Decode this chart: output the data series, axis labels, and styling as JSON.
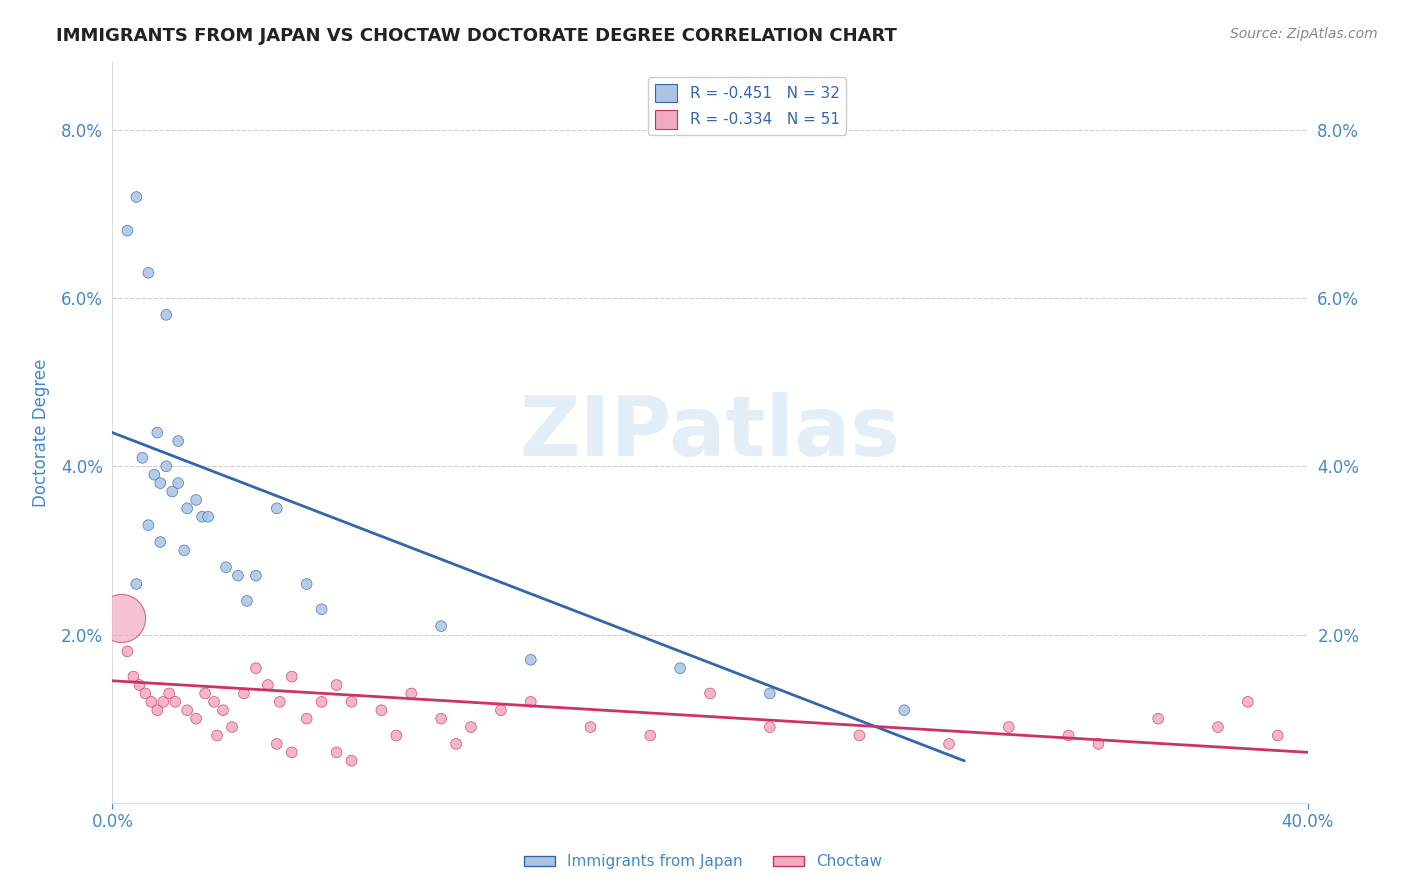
{
  "title": "IMMIGRANTS FROM JAPAN VS CHOCTAW DOCTORATE DEGREE CORRELATION CHART",
  "source_text": "Source: ZipAtlas.com",
  "ylabel": "Doctorate Degree",
  "xlim": [
    0.0,
    0.4
  ],
  "ylim": [
    0.0,
    0.088
  ],
  "xtick_positions": [
    0.0,
    0.4
  ],
  "xtick_labels": [
    "0.0%",
    "40.0%"
  ],
  "ytick_positions": [
    0.0,
    0.02,
    0.04,
    0.06,
    0.08
  ],
  "ytick_labels_left": [
    "",
    "2.0%",
    "4.0%",
    "6.0%",
    "8.0%"
  ],
  "ytick_labels_right": [
    "",
    "2.0%",
    "4.0%",
    "6.0%",
    "8.0%"
  ],
  "blue_R": -0.451,
  "blue_N": 32,
  "pink_R": -0.334,
  "pink_N": 51,
  "blue_color": "#aac4e2",
  "pink_color": "#f2aabe",
  "blue_line_color": "#3366aa",
  "pink_line_color": "#cc3366",
  "legend_label_blue": "Immigrants from Japan",
  "legend_label_pink": "Choctaw",
  "watermark": "ZIPatlas",
  "background_color": "#ffffff",
  "grid_color": "#cccccc",
  "title_color": "#222222",
  "axis_label_color": "#4488cc",
  "blue_scatter_x": [
    0.005,
    0.012,
    0.018,
    0.008,
    0.015,
    0.022,
    0.01,
    0.014,
    0.016,
    0.02,
    0.025,
    0.03,
    0.018,
    0.022,
    0.028,
    0.032,
    0.012,
    0.016,
    0.024,
    0.038,
    0.042,
    0.048,
    0.055,
    0.008,
    0.045,
    0.065,
    0.07,
    0.11,
    0.14,
    0.19,
    0.22,
    0.265
  ],
  "blue_scatter_y": [
    0.068,
    0.063,
    0.058,
    0.072,
    0.044,
    0.043,
    0.041,
    0.039,
    0.038,
    0.037,
    0.035,
    0.034,
    0.04,
    0.038,
    0.036,
    0.034,
    0.033,
    0.031,
    0.03,
    0.028,
    0.027,
    0.027,
    0.035,
    0.026,
    0.024,
    0.026,
    0.023,
    0.021,
    0.017,
    0.016,
    0.013,
    0.011
  ],
  "blue_scatter_sizes": [
    60,
    60,
    60,
    60,
    60,
    60,
    60,
    60,
    60,
    60,
    60,
    60,
    60,
    60,
    60,
    60,
    60,
    60,
    60,
    60,
    60,
    60,
    60,
    60,
    60,
    60,
    60,
    60,
    60,
    60,
    60,
    60
  ],
  "pink_large_x": [
    0.003
  ],
  "pink_large_y": [
    0.022
  ],
  "pink_large_size": [
    1200
  ],
  "pink_scatter_x": [
    0.005,
    0.007,
    0.009,
    0.011,
    0.013,
    0.015,
    0.017,
    0.019,
    0.021,
    0.025,
    0.028,
    0.031,
    0.034,
    0.037,
    0.04,
    0.044,
    0.048,
    0.052,
    0.056,
    0.06,
    0.065,
    0.07,
    0.075,
    0.08,
    0.09,
    0.1,
    0.11,
    0.12,
    0.13,
    0.14,
    0.16,
    0.18,
    0.2,
    0.22,
    0.25,
    0.28,
    0.3,
    0.32,
    0.33,
    0.35,
    0.37,
    0.38,
    0.39,
    0.06,
    0.08,
    0.035,
    0.055,
    0.075,
    0.095,
    0.115
  ],
  "pink_scatter_y": [
    0.018,
    0.015,
    0.014,
    0.013,
    0.012,
    0.011,
    0.012,
    0.013,
    0.012,
    0.011,
    0.01,
    0.013,
    0.012,
    0.011,
    0.009,
    0.013,
    0.016,
    0.014,
    0.012,
    0.015,
    0.01,
    0.012,
    0.014,
    0.012,
    0.011,
    0.013,
    0.01,
    0.009,
    0.011,
    0.012,
    0.009,
    0.008,
    0.013,
    0.009,
    0.008,
    0.007,
    0.009,
    0.008,
    0.007,
    0.01,
    0.009,
    0.012,
    0.008,
    0.006,
    0.005,
    0.008,
    0.007,
    0.006,
    0.008,
    0.007
  ],
  "pink_scatter_sizes": [
    60,
    60,
    60,
    60,
    60,
    60,
    60,
    60,
    60,
    60,
    60,
    60,
    60,
    60,
    60,
    60,
    60,
    60,
    60,
    60,
    60,
    60,
    60,
    60,
    60,
    60,
    60,
    60,
    60,
    60,
    60,
    60,
    60,
    60,
    60,
    60,
    60,
    60,
    60,
    60,
    60,
    60,
    60,
    60,
    60,
    60,
    60,
    60,
    60,
    60
  ],
  "blue_line_x": [
    0.0,
    0.285
  ],
  "blue_line_y": [
    0.044,
    0.005
  ],
  "pink_line_x": [
    0.0,
    0.4
  ],
  "pink_line_y": [
    0.0145,
    0.006
  ]
}
